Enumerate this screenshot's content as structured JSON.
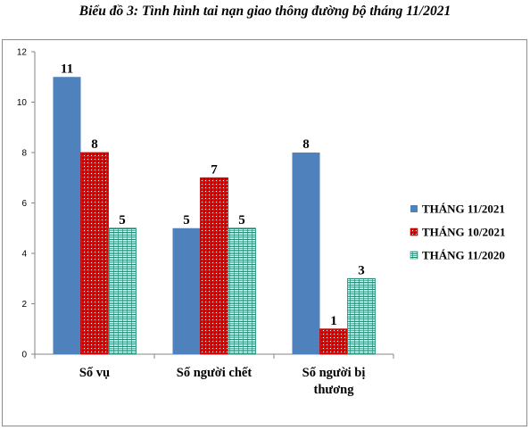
{
  "title": "Biểu đồ 3: Tình hình tai nạn giao thông đường bộ tháng 11/2021",
  "colors": {
    "s1": "#4f81bd",
    "s2": "#ff0000",
    "s3": "#ffffff",
    "s3_pattern": "#1e8b72"
  },
  "chart_data": {
    "type": "bar",
    "categories": [
      [
        "Số vụ"
      ],
      [
        "Số người chết"
      ],
      [
        "Số người bị",
        "thương"
      ]
    ],
    "series": [
      {
        "name": "THÁNG 11/2021",
        "values": [
          11,
          5,
          8
        ]
      },
      {
        "name": "THÁNG 10/2021",
        "values": [
          8,
          7,
          1
        ]
      },
      {
        "name": "THÁNG 11/2020",
        "values": [
          5,
          5,
          3
        ]
      }
    ],
    "ylim": [
      0,
      12
    ],
    "yticks": [
      0,
      2,
      4,
      6,
      8,
      10,
      12
    ],
    "grid": false,
    "legend": "right"
  }
}
